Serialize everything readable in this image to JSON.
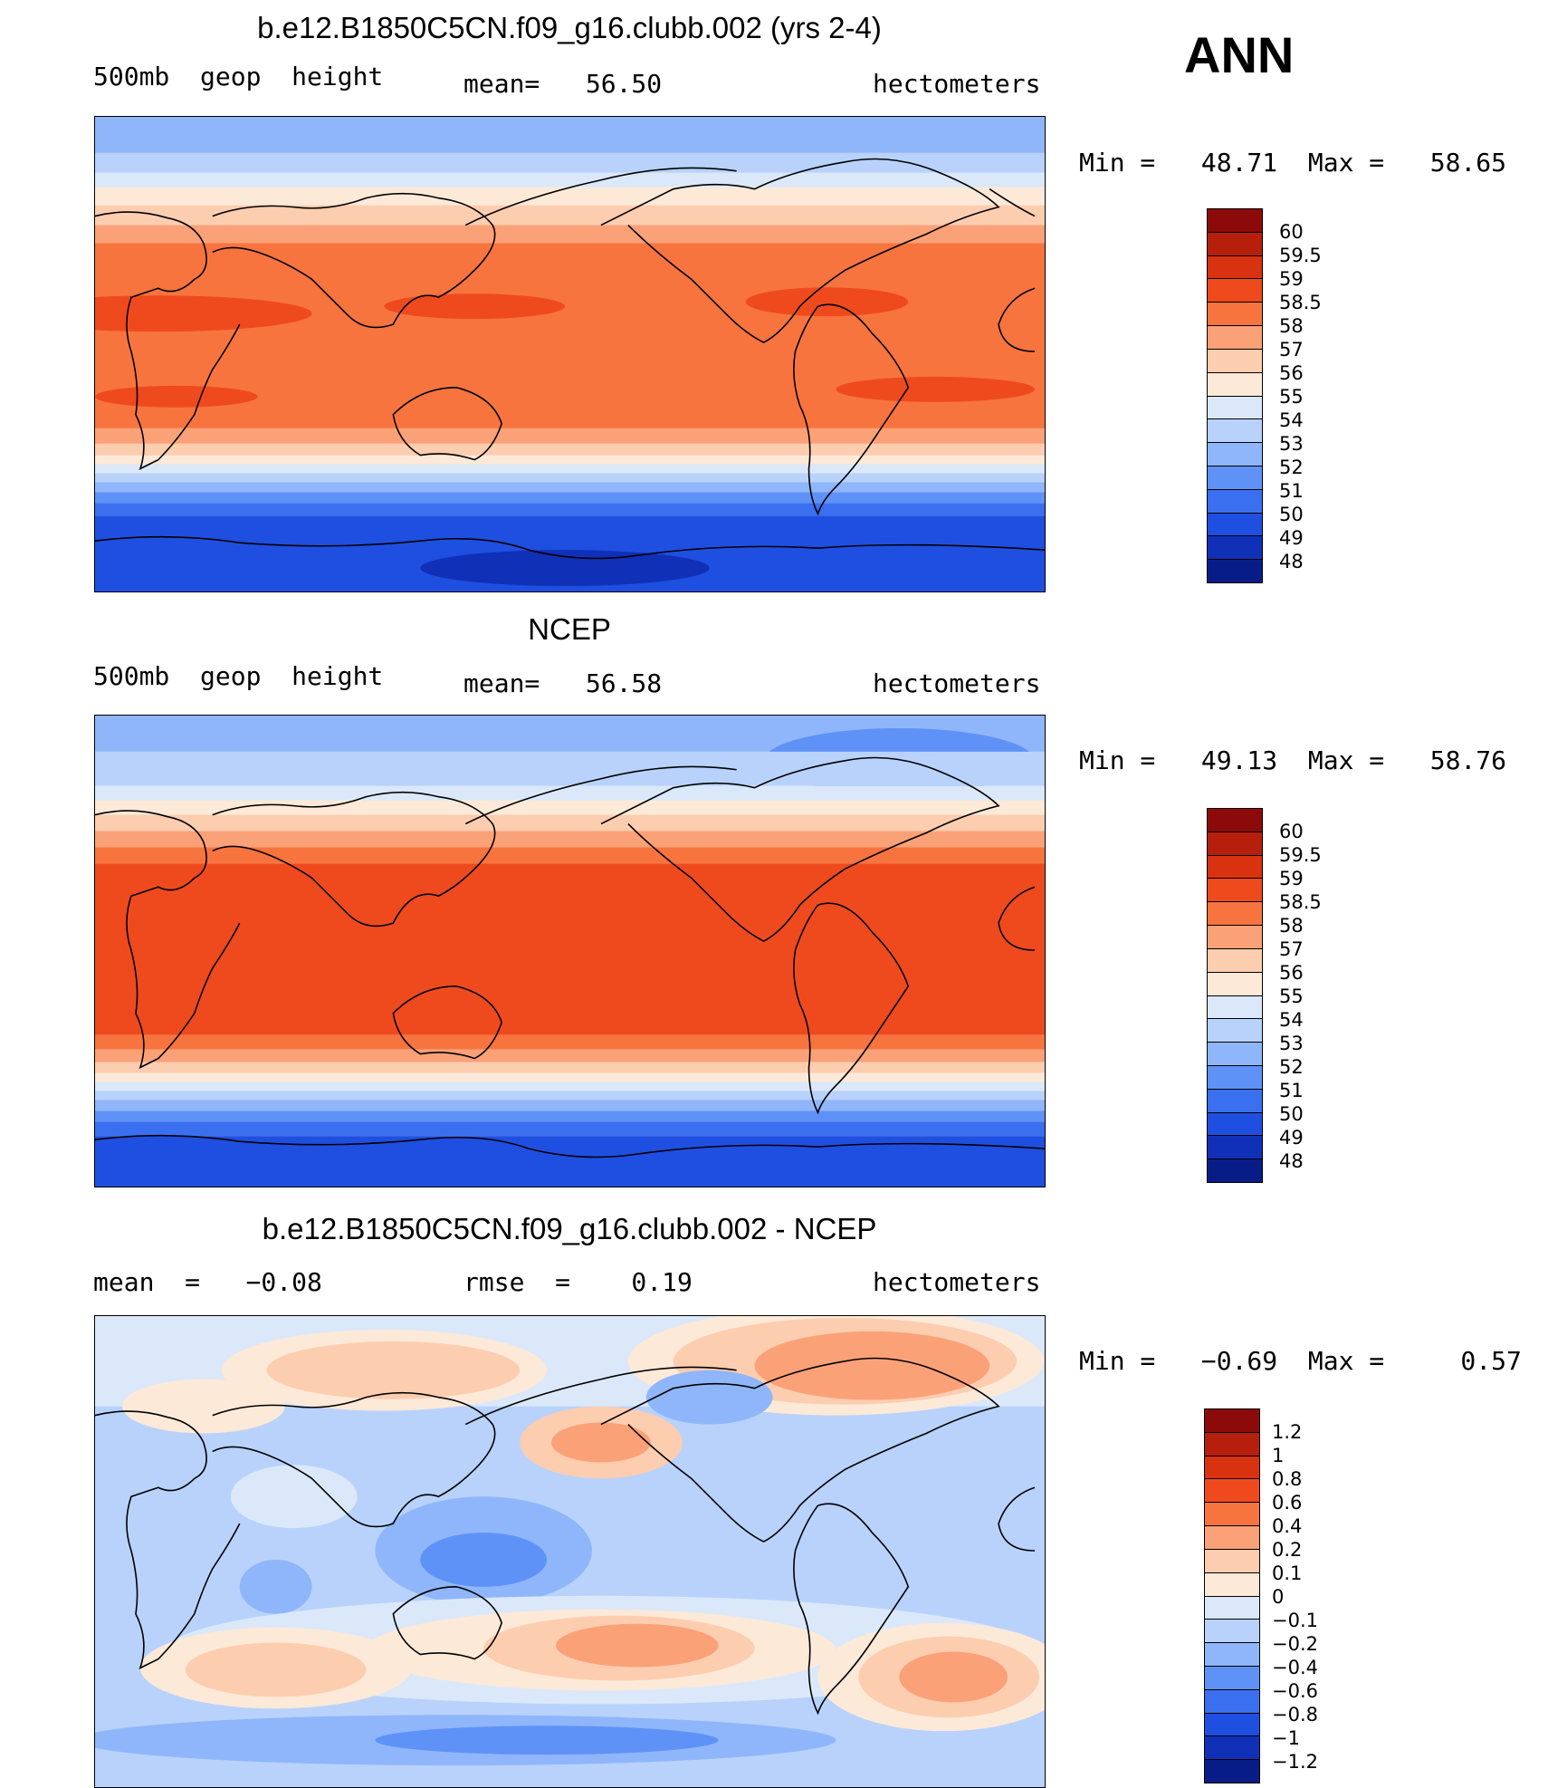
{
  "season": "ANN",
  "panels": [
    {
      "title": "b.e12.B1850C5CN.f09_g16.clubb.002 (yrs 2-4)",
      "left_label": "500mb  geop  height",
      "center_label": "mean=   56.50",
      "right_label": "hectometers",
      "minmax": "Min =   48.71  Max =   58.65",
      "colorbar_labels": [
        "60",
        "59.5",
        "59",
        "58.5",
        "58",
        "57",
        "56",
        "55",
        "54",
        "53",
        "52",
        "51",
        "50",
        "49",
        "48"
      ],
      "colorbar_colors": [
        "#8c0a0a",
        "#b51f0c",
        "#d83210",
        "#ef4a1e",
        "#f7743f",
        "#fba178",
        "#fdcdb0",
        "#fde9d8",
        "#dbe8fa",
        "#b8d2fb",
        "#8fb6fa",
        "#5f92f7",
        "#3a70f0",
        "#1e4fe0",
        "#1030b8",
        "#081c88"
      ]
    },
    {
      "title": "NCEP",
      "left_label": "500mb  geop  height",
      "center_label": "mean=   56.58",
      "right_label": "hectometers",
      "minmax": "Min =   49.13  Max =   58.76",
      "colorbar_labels": [
        "60",
        "59.5",
        "59",
        "58.5",
        "58",
        "57",
        "56",
        "55",
        "54",
        "53",
        "52",
        "51",
        "50",
        "49",
        "48"
      ],
      "colorbar_colors": [
        "#8c0a0a",
        "#b51f0c",
        "#d83210",
        "#ef4a1e",
        "#f7743f",
        "#fba178",
        "#fdcdb0",
        "#fde9d8",
        "#dbe8fa",
        "#b8d2fb",
        "#8fb6fa",
        "#5f92f7",
        "#3a70f0",
        "#1e4fe0",
        "#1030b8",
        "#081c88"
      ]
    },
    {
      "title": "b.e12.B1850C5CN.f09_g16.clubb.002 - NCEP",
      "left_label": "mean  =   −0.08",
      "center_label": "rmse  =    0.19",
      "right_label": "hectometers",
      "minmax": "Min =   −0.69  Max =     0.57",
      "colorbar_labels": [
        "1.2",
        "1",
        "0.8",
        "0.6",
        "0.4",
        "0.2",
        "0.1",
        "0",
        "−0.1",
        "−0.2",
        "−0.4",
        "−0.6",
        "−0.8",
        "−1",
        "−1.2"
      ],
      "colorbar_colors": [
        "#8c0a0a",
        "#b51f0c",
        "#d83210",
        "#ef4a1e",
        "#f7743f",
        "#fba178",
        "#fdcdb0",
        "#fde9d8",
        "#dbe8fa",
        "#b8d2fb",
        "#8fb6fa",
        "#5f92f7",
        "#3a70f0",
        "#1e4fe0",
        "#1030b8",
        "#081c88"
      ]
    }
  ],
  "chart_data": [
    {
      "type": "heatmap",
      "title": "b.e12.B1850C5CN.f09_g16.clubb.002 (yrs 2-4)",
      "variable": "500mb geop height",
      "units": "hectometers",
      "mean": 56.5,
      "min": 48.71,
      "max": 58.65,
      "contour_levels": [
        48,
        49,
        50,
        51,
        52,
        53,
        54,
        55,
        56,
        57,
        58,
        58.5,
        59,
        59.5,
        60
      ]
    },
    {
      "type": "heatmap",
      "title": "NCEP",
      "variable": "500mb geop height",
      "units": "hectometers",
      "mean": 56.58,
      "min": 49.13,
      "max": 58.76,
      "contour_levels": [
        48,
        49,
        50,
        51,
        52,
        53,
        54,
        55,
        56,
        57,
        58,
        58.5,
        59,
        59.5,
        60
      ]
    },
    {
      "type": "heatmap",
      "title": "b.e12.B1850C5CN.f09_g16.clubb.002 - NCEP",
      "units": "hectometers",
      "mean": -0.08,
      "rmse": 0.19,
      "min": -0.69,
      "max": 0.57,
      "contour_levels": [
        -1.2,
        -1,
        -0.8,
        -0.6,
        -0.4,
        -0.2,
        -0.1,
        0,
        0.1,
        0.2,
        0.4,
        0.6,
        0.8,
        1,
        1.2
      ]
    }
  ]
}
